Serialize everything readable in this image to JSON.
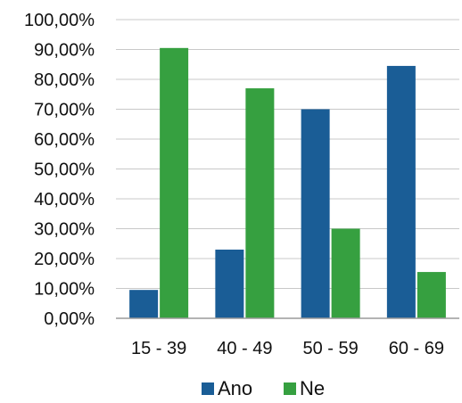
{
  "chart_data": {
    "type": "bar",
    "title": "",
    "xlabel": "",
    "ylabel": "",
    "categories": [
      "15 - 39",
      "40 - 49",
      "50 - 59",
      "60 - 69"
    ],
    "series": [
      {
        "name": "Ano",
        "color": "#1a5d96",
        "values": [
          9.5,
          23.0,
          70.0,
          84.5
        ]
      },
      {
        "name": "Ne",
        "color": "#36a040",
        "values": [
          90.5,
          77.0,
          30.0,
          15.5
        ]
      }
    ],
    "ylim": [
      0,
      100
    ],
    "y_ticks": [
      "0,00%",
      "10,00%",
      "20,00%",
      "30,00%",
      "40,00%",
      "50,00%",
      "60,00%",
      "70,00%",
      "80,00%",
      "90,00%",
      "100,00%"
    ],
    "grid": true,
    "legend_position": "bottom"
  }
}
